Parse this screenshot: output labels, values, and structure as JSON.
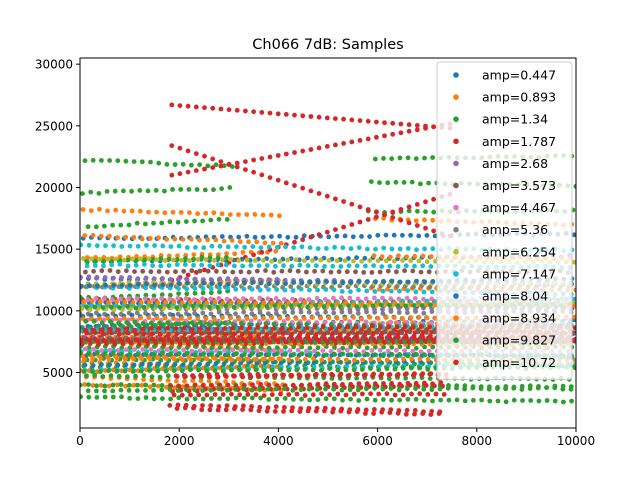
{
  "chart_data": {
    "type": "scatter",
    "title": "Ch066 7dB: Samples",
    "xlabel": "",
    "ylabel": "",
    "xlim": [
      0,
      10000
    ],
    "ylim": [
      500,
      30500
    ],
    "x_ticks": [
      0,
      2000,
      4000,
      6000,
      8000,
      10000
    ],
    "x_tick_labels": [
      "0",
      "2000",
      "4000",
      "6000",
      "8000",
      "10000"
    ],
    "y_ticks": [
      5000,
      10000,
      15000,
      20000,
      25000,
      30000
    ],
    "y_tick_labels": [
      "5000",
      "10000",
      "15000",
      "20000",
      "25000",
      "30000"
    ],
    "grid": false,
    "legend_position": "top-right",
    "series": [
      {
        "name": "amp=0.447",
        "color": "#1f77b4",
        "bands": [
          {
            "x0": 0,
            "x1": 10000,
            "y0": 9000,
            "y1": 16000,
            "lines": 5
          },
          {
            "x0": 0,
            "x1": 10000,
            "y0": 6500,
            "y1": 8800,
            "lines": 3
          }
        ]
      },
      {
        "name": "amp=0.893",
        "color": "#ff7f0e",
        "bands": [
          {
            "x0": 0,
            "x1": 4100,
            "y0": 8000,
            "y1": 18200,
            "lines": 6
          },
          {
            "x0": 0,
            "x1": 4100,
            "y0": 3800,
            "y1": 7200,
            "lines": 6
          },
          {
            "x0": 5800,
            "x1": 10000,
            "y0": 9000,
            "y1": 17500,
            "lines": 4
          }
        ]
      },
      {
        "name": "amp=1.34",
        "color": "#2ca02c",
        "bands": [
          {
            "x0": 0,
            "x1": 3100,
            "y0": 8500,
            "y1": 22000,
            "lines": 6
          },
          {
            "x0": 0,
            "x1": 10000,
            "y0": 3200,
            "y1": 7800,
            "lines": 7
          },
          {
            "x0": 5800,
            "x1": 10000,
            "y0": 18000,
            "y1": 22500,
            "lines": 3
          }
        ]
      },
      {
        "name": "amp=1.787",
        "color": "#d62728",
        "bands": [
          {
            "x0": 1800,
            "x1": 7400,
            "y0": 2000,
            "y1": 5000,
            "lines": 7
          },
          {
            "x0": 0,
            "x1": 10000,
            "y0": 7500,
            "y1": 8200,
            "lines": 4
          }
        ],
        "trends": [
          {
            "x0": 1850,
            "y0": 26700,
            "x1": 7500,
            "y1": 24800
          },
          {
            "x0": 1850,
            "y0": 23400,
            "x1": 7500,
            "y1": 16000
          },
          {
            "x0": 1850,
            "y0": 21000,
            "x1": 7500,
            "y1": 25200
          },
          {
            "x0": 1850,
            "y0": 12500,
            "x1": 7500,
            "y1": 19500
          }
        ]
      },
      {
        "name": "amp=2.68",
        "color": "#9467bd",
        "bands": [
          {
            "x0": 0,
            "x1": 10000,
            "y0": 8000,
            "y1": 12500,
            "lines": 3
          }
        ]
      },
      {
        "name": "amp=3.573",
        "color": "#8c564b",
        "bands": [
          {
            "x0": 0,
            "x1": 10000,
            "y0": 8500,
            "y1": 13000,
            "lines": 3
          }
        ]
      },
      {
        "name": "amp=4.467",
        "color": "#e377c2",
        "bands": [
          {
            "x0": 0,
            "x1": 10000,
            "y0": 7000,
            "y1": 11000,
            "lines": 3
          }
        ]
      },
      {
        "name": "amp=5.36",
        "color": "#7f7f7f",
        "bands": [
          {
            "x0": 0,
            "x1": 10000,
            "y0": 7500,
            "y1": 12000,
            "lines": 3
          }
        ]
      },
      {
        "name": "amp=6.254",
        "color": "#bcbd22",
        "bands": [
          {
            "x0": 0,
            "x1": 10000,
            "y0": 8500,
            "y1": 14000,
            "lines": 4
          }
        ]
      },
      {
        "name": "amp=7.147",
        "color": "#17becf",
        "bands": [
          {
            "x0": 0,
            "x1": 10000,
            "y0": 5000,
            "y1": 15500,
            "lines": 7
          }
        ]
      },
      {
        "name": "amp=8.04",
        "color": "#1f77b4",
        "bands": [
          {
            "x0": 0,
            "x1": 10000,
            "y0": 5500,
            "y1": 12000,
            "lines": 4
          }
        ]
      },
      {
        "name": "amp=8.934",
        "color": "#ff7f0e",
        "bands": [
          {
            "x0": 0,
            "x1": 10000,
            "y0": 6000,
            "y1": 11000,
            "lines": 4
          }
        ]
      },
      {
        "name": "amp=9.827",
        "color": "#2ca02c",
        "bands": [
          {
            "x0": 0,
            "x1": 10000,
            "y0": 3500,
            "y1": 10500,
            "lines": 6
          }
        ]
      },
      {
        "name": "amp=10.72",
        "color": "#d62728",
        "bands": [
          {
            "x0": 0,
            "x1": 10000,
            "y0": 7400,
            "y1": 8300,
            "lines": 4
          }
        ]
      }
    ]
  }
}
